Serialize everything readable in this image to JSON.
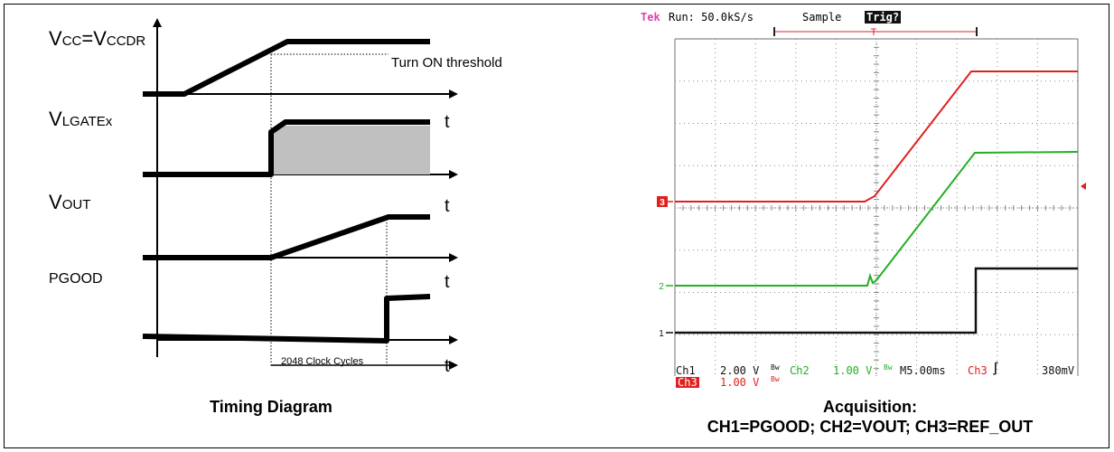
{
  "timing": {
    "vcc_label": "V",
    "vcc_sub": "CC",
    "vcc_eq": "=V",
    "vcc_sub2": "CCDR",
    "vlgate_label": "V",
    "vlgate_sub": "LGATEx",
    "vout_label": "V",
    "vout_sub": "OUT",
    "pgood_label": "PGOOD",
    "turn_on_threshold": "Turn ON threshold",
    "clock_cycles": "2048 Clock Cycles",
    "t_label": "t",
    "caption": "Timing Diagram"
  },
  "scope": {
    "tek": "Tek",
    "run": "Run: 50.0kS/s",
    "sample": "Sample",
    "trig": "Trig?",
    "ch1_name": "Ch1",
    "ch1_scale": "2.00 V",
    "ch2_name": "Ch2",
    "ch2_scale": "1.00 V",
    "timebase": "M5.00ms",
    "ch3_trig": "Ch3",
    "trig_level": "380mV",
    "ch3_name": "Ch3",
    "ch3_scale": "1.00 V",
    "bw_mark": "Bw",
    "marker_3": "3",
    "marker_2": "2",
    "marker_1": "1",
    "colors": {
      "ch1": "#000000",
      "ch2": "#22b022",
      "ch3": "#e0201e",
      "tek": "#e040b0",
      "grid": "#8a8a8a"
    }
  },
  "acquisition_caption": {
    "line1": "Acquisition:",
    "line2": "CH1=PGOOD; CH2=VOUT; CH3=REF_OUT"
  }
}
